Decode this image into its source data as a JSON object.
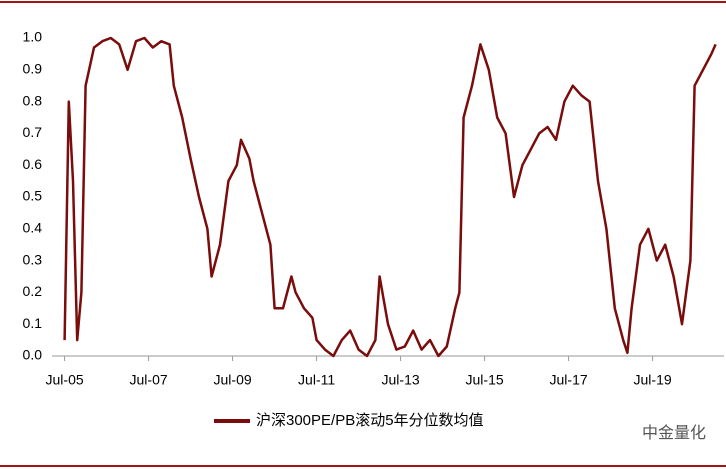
{
  "chart_data": {
    "type": "line",
    "x": [
      2005.5,
      2005.6,
      2005.7,
      2005.8,
      2005.9,
      2006.0,
      2006.2,
      2006.4,
      2006.6,
      2006.8,
      2007.0,
      2007.2,
      2007.4,
      2007.6,
      2007.8,
      2008.0,
      2008.1,
      2008.3,
      2008.5,
      2008.7,
      2008.9,
      2009.0,
      2009.2,
      2009.4,
      2009.6,
      2009.7,
      2009.9,
      2010.0,
      2010.2,
      2010.4,
      2010.5,
      2010.7,
      2010.9,
      2011.0,
      2011.2,
      2011.4,
      2011.5,
      2011.7,
      2011.9,
      2012.1,
      2012.3,
      2012.5,
      2012.7,
      2012.9,
      2013.0,
      2013.2,
      2013.4,
      2013.6,
      2013.8,
      2014.0,
      2014.2,
      2014.4,
      2014.6,
      2014.8,
      2014.9,
      2015.0,
      2015.2,
      2015.4,
      2015.6,
      2015.8,
      2016.0,
      2016.2,
      2016.4,
      2016.6,
      2016.8,
      2017.0,
      2017.2,
      2017.4,
      2017.6,
      2017.8,
      2018.0,
      2018.2,
      2018.4,
      2018.6,
      2018.8,
      2018.9,
      2019.0,
      2019.2,
      2019.4,
      2019.6,
      2019.8,
      2020.0,
      2020.2,
      2020.4,
      2020.5,
      2020.7,
      2020.9,
      2021.0
    ],
    "series": [
      {
        "name": "沪深300PE/PB滚动5年分位数均值",
        "color": "#7b0c0c",
        "values": [
          0.05,
          0.8,
          0.55,
          0.05,
          0.2,
          0.85,
          0.97,
          0.99,
          1.0,
          0.98,
          0.9,
          0.99,
          1.0,
          0.97,
          0.99,
          0.98,
          0.85,
          0.75,
          0.62,
          0.5,
          0.4,
          0.25,
          0.35,
          0.55,
          0.6,
          0.68,
          0.62,
          0.55,
          0.45,
          0.35,
          0.15,
          0.15,
          0.25,
          0.2,
          0.15,
          0.12,
          0.05,
          0.02,
          0.0,
          0.05,
          0.08,
          0.02,
          0.0,
          0.05,
          0.25,
          0.1,
          0.02,
          0.03,
          0.08,
          0.02,
          0.05,
          0.0,
          0.03,
          0.15,
          0.2,
          0.75,
          0.85,
          0.98,
          0.9,
          0.75,
          0.7,
          0.5,
          0.6,
          0.65,
          0.7,
          0.72,
          0.68,
          0.8,
          0.85,
          0.82,
          0.8,
          0.55,
          0.4,
          0.15,
          0.05,
          0.01,
          0.15,
          0.35,
          0.4,
          0.3,
          0.35,
          0.25,
          0.1,
          0.3,
          0.85,
          0.9,
          0.95,
          0.98
        ]
      }
    ],
    "xlim": [
      2005.2,
      2021.2
    ],
    "xticks": [
      {
        "value": 2005.5,
        "label": "Jul-05"
      },
      {
        "value": 2007.5,
        "label": "Jul-07"
      },
      {
        "value": 2009.5,
        "label": "Jul-09"
      },
      {
        "value": 2011.5,
        "label": "Jul-11"
      },
      {
        "value": 2013.5,
        "label": "Jul-13"
      },
      {
        "value": 2015.5,
        "label": "Jul-15"
      },
      {
        "value": 2017.5,
        "label": "Jul-17"
      },
      {
        "value": 2019.5,
        "label": "Jul-19"
      }
    ],
    "ylim": [
      0,
      1
    ],
    "yticks": [
      {
        "value": 0,
        "label": "0.0"
      },
      0.1,
      0.2,
      0.3,
      0.4,
      0.5,
      0.6,
      0.7,
      0.8,
      0.9,
      {
        "value": 1,
        "label": "1.0"
      }
    ],
    "grid": false,
    "watermark": "中金量化"
  }
}
